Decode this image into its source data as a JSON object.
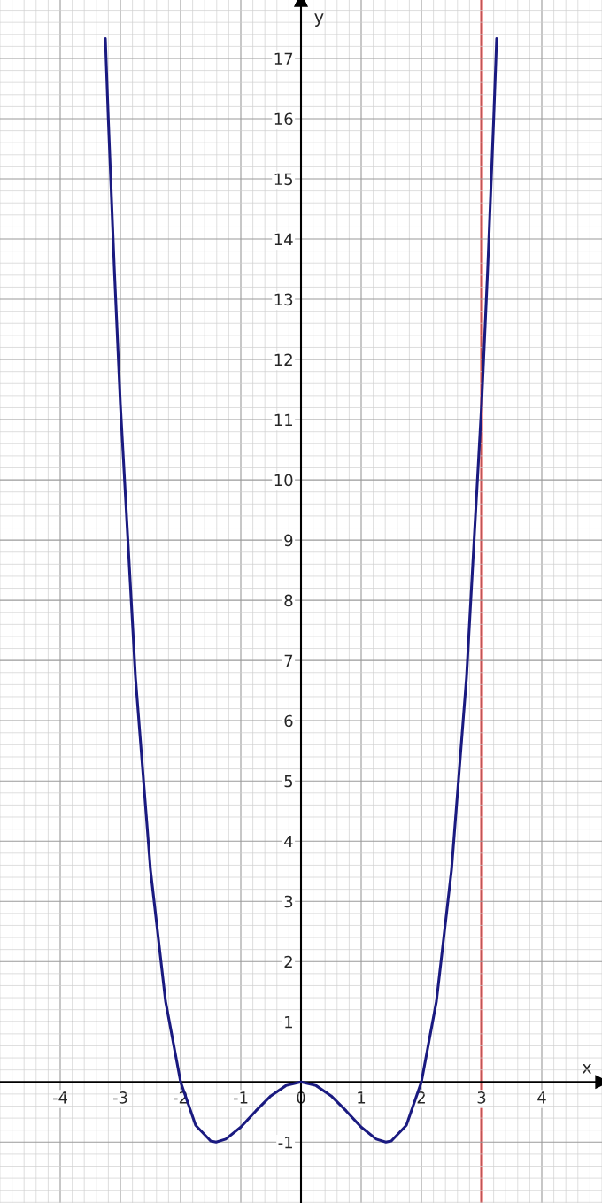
{
  "chart_data": {
    "type": "line",
    "xlabel": "x",
    "ylabel": "y",
    "x": [
      -3.25,
      -3.2,
      -3.1,
      -3,
      -2.75,
      -2.5,
      -2.25,
      -2,
      -1.75,
      -1.5,
      -1.41,
      -1.25,
      -1,
      -0.75,
      -0.5,
      -0.25,
      0,
      0.25,
      0.5,
      0.75,
      1,
      1.25,
      1.41,
      1.5,
      1.75,
      2,
      2.25,
      2.5,
      2.75,
      3,
      3.1,
      3.2,
      3.25
    ],
    "series": [
      {
        "color": "#1a1a80",
        "values": [
          17.33,
          15.97,
          13.48,
          11.25,
          6.73,
          3.52,
          1.34,
          0,
          -0.72,
          -0.98,
          -1.0,
          -0.95,
          -0.75,
          -0.48,
          -0.23,
          -0.06,
          0,
          -0.06,
          -0.23,
          -0.48,
          -0.75,
          -0.95,
          -1.0,
          -0.98,
          -0.72,
          0,
          1.34,
          3.52,
          6.73,
          11.25,
          13.48,
          15.97,
          17.33
        ]
      }
    ],
    "xlim": [
      -5,
      5
    ],
    "ylim": [
      -2.01,
      17.97
    ],
    "xticks": [
      -4,
      -3,
      -2,
      -1,
      0,
      1,
      2,
      3,
      4
    ],
    "yticks": [
      -1,
      1,
      2,
      3,
      4,
      5,
      6,
      7,
      8,
      9,
      10,
      11,
      12,
      13,
      14,
      15,
      16,
      17
    ],
    "ref_lines": [
      {
        "axis": "x",
        "value": 3,
        "color": "#e00000"
      }
    ],
    "grid": true
  }
}
